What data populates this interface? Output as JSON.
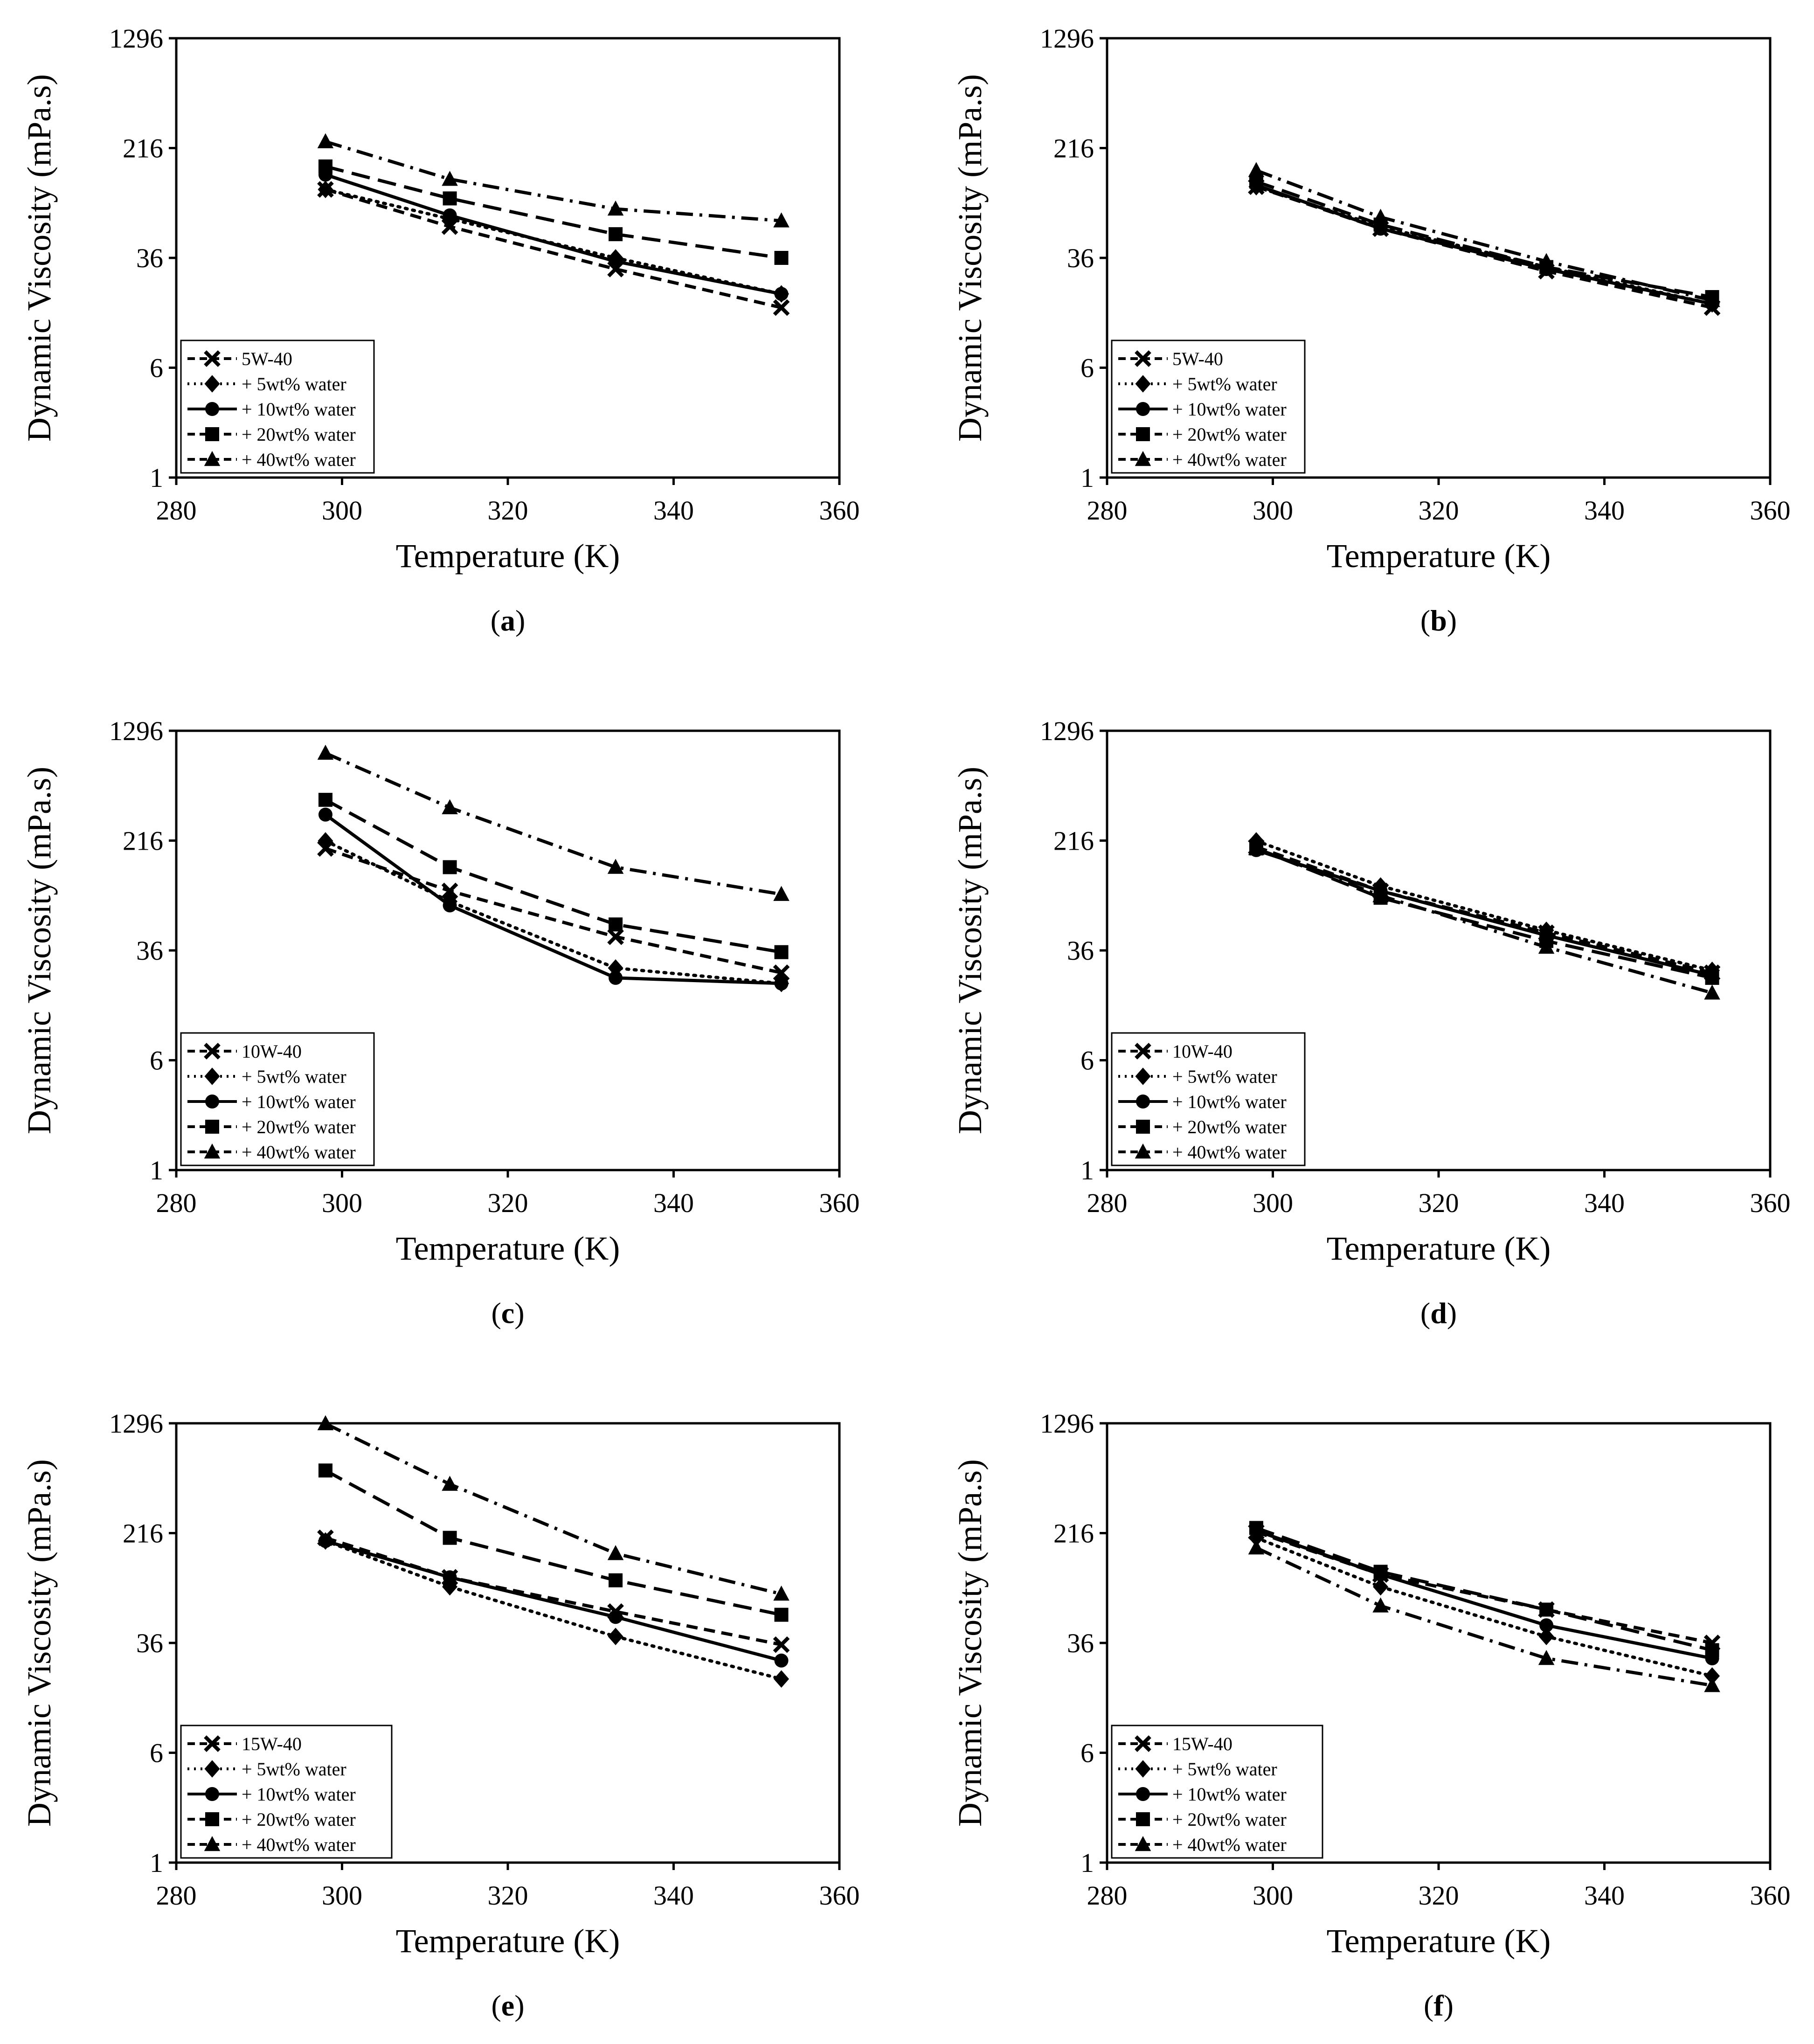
{
  "figure": {
    "panels": [
      "a",
      "b",
      "c",
      "d",
      "e",
      "f"
    ]
  },
  "chart_data": [
    {
      "id": "a",
      "caption": "a",
      "type": "line",
      "xlabel": "Temperature (K)",
      "ylabel": "Dynamic Viscosity (mPa.s)",
      "xlim": [
        280,
        360
      ],
      "xticks": [
        280,
        300,
        320,
        340,
        360
      ],
      "ylim": [
        1,
        1296
      ],
      "yscale": "log",
      "yticks": [
        1,
        6,
        36,
        216,
        1296
      ],
      "legend_position": "bottom-left",
      "x": [
        298,
        313,
        333,
        353
      ],
      "series": [
        {
          "name": "5W-40",
          "style": "dash",
          "marker": "x",
          "values": [
            110,
            60,
            30,
            16
          ]
        },
        {
          "name": "+ 5wt% water",
          "style": "dot",
          "marker": "diamond",
          "values": [
            110,
            68,
            36,
            20
          ]
        },
        {
          "name": "+ 10wt% water",
          "style": "solid",
          "marker": "circle",
          "values": [
            140,
            72,
            34,
            20
          ]
        },
        {
          "name": "+ 20wt% water",
          "style": "longdash",
          "marker": "square",
          "values": [
            160,
            95,
            53,
            36
          ]
        },
        {
          "name": "+ 40wt% water",
          "style": "dashdot",
          "marker": "triangle",
          "values": [
            240,
            130,
            80,
            66
          ]
        }
      ]
    },
    {
      "id": "b",
      "caption": "b",
      "type": "line",
      "xlabel": "Temperature (K)",
      "ylabel": "Dynamic Viscosity (mPa.s)",
      "xlim": [
        280,
        360
      ],
      "xticks": [
        280,
        300,
        320,
        340,
        360
      ],
      "ylim": [
        1,
        1296
      ],
      "yscale": "log",
      "yticks": [
        1,
        6,
        36,
        216,
        1296
      ],
      "legend_position": "bottom-left",
      "x": [
        298,
        313,
        333,
        353
      ],
      "series": [
        {
          "name": "5W-40",
          "style": "dash",
          "marker": "x",
          "values": [
            115,
            58,
            29,
            16
          ]
        },
        {
          "name": "+ 5wt% water",
          "style": "dot",
          "marker": "diamond",
          "values": [
            115,
            60,
            31,
            17
          ]
        },
        {
          "name": "+ 10wt% water",
          "style": "solid",
          "marker": "circle",
          "values": [
            118,
            58,
            30,
            17
          ]
        },
        {
          "name": "+ 20wt% water",
          "style": "longdash",
          "marker": "square",
          "values": [
            125,
            62,
            31,
            19
          ]
        },
        {
          "name": "+ 40wt% water",
          "style": "dashdot",
          "marker": "triangle",
          "values": [
            150,
            70,
            34,
            18
          ]
        }
      ]
    },
    {
      "id": "c",
      "caption": "c",
      "type": "line",
      "xlabel": "Temperature (K)",
      "ylabel": "Dynamic Viscosity (mPa.s)",
      "xlim": [
        280,
        360
      ],
      "xticks": [
        280,
        300,
        320,
        340,
        360
      ],
      "ylim": [
        1,
        1296
      ],
      "yscale": "log",
      "yticks": [
        1,
        6,
        36,
        216,
        1296
      ],
      "legend_position": "bottom-left",
      "x": [
        298,
        313,
        333,
        353
      ],
      "series": [
        {
          "name": "10W-40",
          "style": "dash",
          "marker": "x",
          "values": [
            190,
            95,
            45,
            25
          ]
        },
        {
          "name": "+ 5wt% water",
          "style": "dot",
          "marker": "diamond",
          "values": [
            215,
            80,
            27,
            21
          ]
        },
        {
          "name": "+ 10wt% water",
          "style": "solid",
          "marker": "circle",
          "values": [
            330,
            75,
            23,
            21
          ]
        },
        {
          "name": "+ 20wt% water",
          "style": "longdash",
          "marker": "square",
          "values": [
            420,
            140,
            55,
            35
          ]
        },
        {
          "name": "+ 40wt% water",
          "style": "dashdot",
          "marker": "triangle",
          "values": [
            900,
            370,
            140,
            90
          ]
        }
      ]
    },
    {
      "id": "d",
      "caption": "d",
      "type": "line",
      "xlabel": "Temperature (K)",
      "ylabel": "Dynamic Viscosity (mPa.s)",
      "xlim": [
        280,
        360
      ],
      "xticks": [
        280,
        300,
        320,
        340,
        360
      ],
      "ylim": [
        1,
        1296
      ],
      "yscale": "log",
      "yticks": [
        1,
        6,
        36,
        216,
        1296
      ],
      "legend_position": "bottom-left",
      "x": [
        298,
        313,
        333,
        353
      ],
      "series": [
        {
          "name": "10W-40",
          "style": "dash",
          "marker": "x",
          "values": [
            195,
            95,
            48,
            25
          ]
        },
        {
          "name": "+ 5wt% water",
          "style": "dot",
          "marker": "diamond",
          "values": [
            215,
            103,
            50,
            26
          ]
        },
        {
          "name": "+ 10wt% water",
          "style": "solid",
          "marker": "circle",
          "values": [
            185,
            95,
            46,
            24
          ]
        },
        {
          "name": "+ 20wt% water",
          "style": "longdash",
          "marker": "square",
          "values": [
            190,
            85,
            42,
            23
          ]
        },
        {
          "name": "+ 40wt% water",
          "style": "dashdot",
          "marker": "triangle",
          "values": [
            190,
            88,
            38,
            18
          ]
        }
      ]
    },
    {
      "id": "e",
      "caption": "e",
      "type": "line",
      "xlabel": "Temperature (K)",
      "ylabel": "Dynamic Viscosity (mPa.s)",
      "xlim": [
        280,
        360
      ],
      "xticks": [
        280,
        300,
        320,
        340,
        360
      ],
      "ylim": [
        1,
        1296
      ],
      "yscale": "log",
      "yticks": [
        1,
        6,
        36,
        216,
        1296
      ],
      "legend_position": "bottom-left",
      "x": [
        298,
        313,
        333,
        353
      ],
      "series": [
        {
          "name": "15W-40",
          "style": "dash",
          "marker": "x",
          "values": [
            200,
            105,
            60,
            35
          ]
        },
        {
          "name": "+ 5wt% water",
          "style": "dot",
          "marker": "diamond",
          "values": [
            190,
            90,
            40,
            20
          ]
        },
        {
          "name": "+ 10wt% water",
          "style": "solid",
          "marker": "circle",
          "values": [
            190,
            105,
            55,
            27
          ]
        },
        {
          "name": "+ 20wt% water",
          "style": "longdash",
          "marker": "square",
          "values": [
            600,
            200,
            100,
            57
          ]
        },
        {
          "name": "+ 40wt% water",
          "style": "dashdot",
          "marker": "triangle",
          "values": [
            1290,
            480,
            155,
            80
          ]
        }
      ]
    },
    {
      "id": "f",
      "caption": "f",
      "type": "line",
      "xlabel": "Temperature (K)",
      "ylabel": "Dynamic Viscosity (mPa.s)",
      "xlim": [
        280,
        360
      ],
      "xticks": [
        280,
        300,
        320,
        340,
        360
      ],
      "ylim": [
        1,
        1296
      ],
      "yscale": "log",
      "yticks": [
        1,
        6,
        36,
        216,
        1296
      ],
      "legend_position": "bottom-left",
      "x": [
        298,
        313,
        333,
        353
      ],
      "series": [
        {
          "name": "15W-40",
          "style": "dash",
          "marker": "x",
          "values": [
            220,
            110,
            62,
            36
          ]
        },
        {
          "name": "+ 5wt% water",
          "style": "dot",
          "marker": "diamond",
          "values": [
            200,
            90,
            40,
            21
          ]
        },
        {
          "name": "+ 10wt% water",
          "style": "solid",
          "marker": "circle",
          "values": [
            225,
            110,
            48,
            28
          ]
        },
        {
          "name": "+ 20wt% water",
          "style": "longdash",
          "marker": "square",
          "values": [
            235,
            115,
            62,
            32
          ]
        },
        {
          "name": "+ 40wt% water",
          "style": "dashdot",
          "marker": "triangle",
          "values": [
            170,
            66,
            28,
            18
          ]
        }
      ]
    }
  ]
}
